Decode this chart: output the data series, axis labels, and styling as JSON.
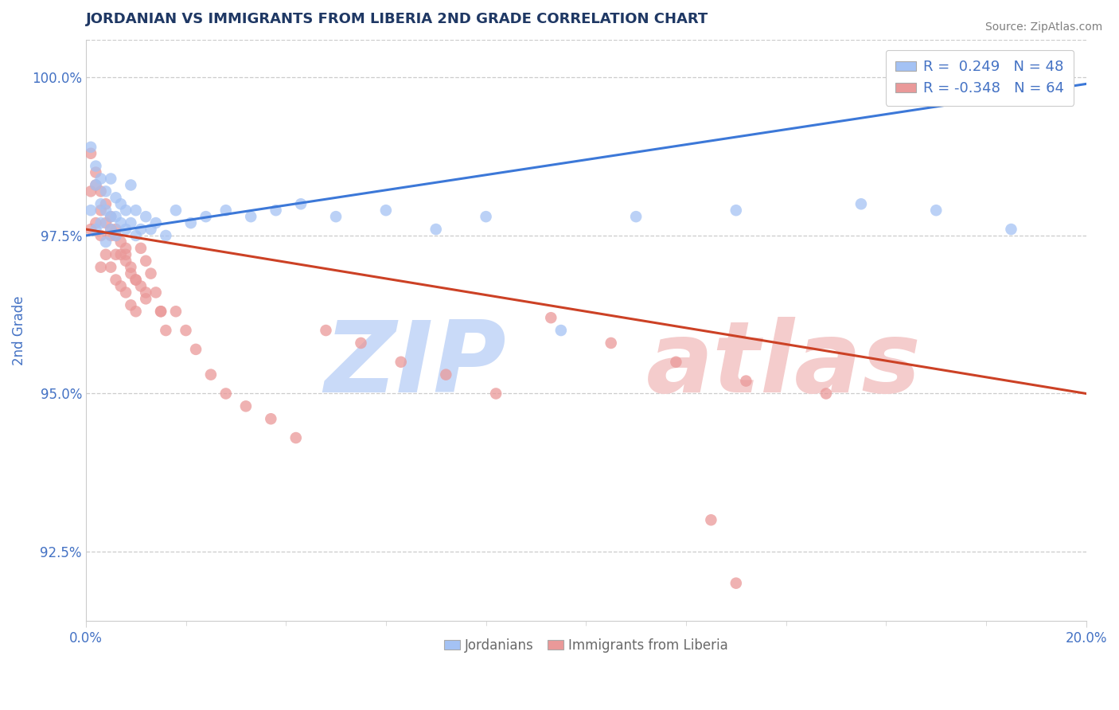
{
  "title": "JORDANIAN VS IMMIGRANTS FROM LIBERIA 2ND GRADE CORRELATION CHART",
  "source_text": "Source: ZipAtlas.com",
  "ylabel": "2nd Grade",
  "xlim": [
    0.0,
    0.2
  ],
  "ylim": [
    0.914,
    1.006
  ],
  "yticks": [
    0.925,
    0.95,
    0.975,
    1.0
  ],
  "ytick_labels": [
    "92.5%",
    "95.0%",
    "97.5%",
    "100.0%"
  ],
  "legend_r1": "R =  0.249   N = 48",
  "legend_r2": "R = -0.348   N = 64",
  "blue_color": "#a4c2f4",
  "pink_color": "#ea9999",
  "blue_line_color": "#3c78d8",
  "pink_line_color": "#cc4125",
  "title_color": "#1f3864",
  "label_color": "#4472c4",
  "watermark_zip_color": "#c9daf8",
  "watermark_atlas_color": "#f4cccc",
  "blue_line_x0": 0.0,
  "blue_line_y0": 0.975,
  "blue_line_x1": 0.2,
  "blue_line_y1": 0.999,
  "pink_line_x0": 0.0,
  "pink_line_y0": 0.976,
  "pink_line_x1": 0.2,
  "pink_line_y1": 0.95,
  "blue_scatter_x": [
    0.001,
    0.001,
    0.002,
    0.002,
    0.002,
    0.003,
    0.003,
    0.003,
    0.004,
    0.004,
    0.004,
    0.005,
    0.005,
    0.005,
    0.006,
    0.006,
    0.006,
    0.007,
    0.007,
    0.008,
    0.008,
    0.009,
    0.009,
    0.01,
    0.01,
    0.011,
    0.012,
    0.013,
    0.014,
    0.016,
    0.018,
    0.021,
    0.024,
    0.028,
    0.033,
    0.038,
    0.043,
    0.05,
    0.06,
    0.07,
    0.08,
    0.095,
    0.11,
    0.13,
    0.155,
    0.17,
    0.185,
    0.195
  ],
  "blue_scatter_y": [
    0.989,
    0.979,
    0.986,
    0.976,
    0.983,
    0.98,
    0.977,
    0.984,
    0.979,
    0.974,
    0.982,
    0.978,
    0.984,
    0.976,
    0.981,
    0.975,
    0.978,
    0.98,
    0.977,
    0.976,
    0.979,
    0.977,
    0.983,
    0.975,
    0.979,
    0.976,
    0.978,
    0.976,
    0.977,
    0.975,
    0.979,
    0.977,
    0.978,
    0.979,
    0.978,
    0.979,
    0.98,
    0.978,
    0.979,
    0.976,
    0.978,
    0.96,
    0.978,
    0.979,
    0.98,
    0.979,
    0.976,
    0.998
  ],
  "pink_scatter_x": [
    0.001,
    0.001,
    0.002,
    0.002,
    0.003,
    0.003,
    0.003,
    0.004,
    0.004,
    0.005,
    0.005,
    0.005,
    0.006,
    0.006,
    0.006,
    0.007,
    0.007,
    0.008,
    0.008,
    0.008,
    0.009,
    0.009,
    0.01,
    0.01,
    0.011,
    0.011,
    0.012,
    0.012,
    0.013,
    0.014,
    0.015,
    0.016,
    0.018,
    0.02,
    0.022,
    0.025,
    0.028,
    0.032,
    0.037,
    0.042,
    0.048,
    0.055,
    0.063,
    0.072,
    0.082,
    0.093,
    0.105,
    0.118,
    0.132,
    0.148,
    0.001,
    0.002,
    0.003,
    0.004,
    0.005,
    0.006,
    0.007,
    0.008,
    0.009,
    0.01,
    0.012,
    0.015,
    0.125,
    0.13
  ],
  "pink_scatter_y": [
    0.982,
    0.976,
    0.983,
    0.977,
    0.979,
    0.975,
    0.97,
    0.977,
    0.972,
    0.976,
    0.97,
    0.975,
    0.972,
    0.968,
    0.975,
    0.972,
    0.967,
    0.971,
    0.966,
    0.973,
    0.969,
    0.964,
    0.968,
    0.963,
    0.967,
    0.973,
    0.965,
    0.971,
    0.969,
    0.966,
    0.963,
    0.96,
    0.963,
    0.96,
    0.957,
    0.953,
    0.95,
    0.948,
    0.946,
    0.943,
    0.96,
    0.958,
    0.955,
    0.953,
    0.95,
    0.962,
    0.958,
    0.955,
    0.952,
    0.95,
    0.988,
    0.985,
    0.982,
    0.98,
    0.978,
    0.976,
    0.974,
    0.972,
    0.97,
    0.968,
    0.966,
    0.963,
    0.93,
    0.92
  ]
}
